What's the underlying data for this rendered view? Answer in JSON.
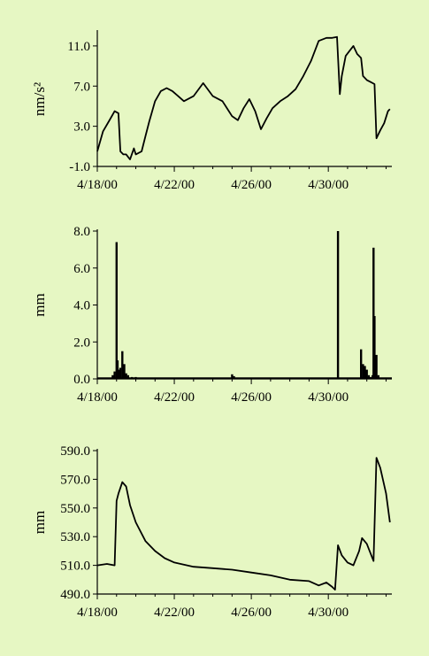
{
  "chart_data": [
    {
      "type": "line",
      "ylabel": "nm/s²",
      "ylim": [
        -1.0,
        12.4
      ],
      "yticks": [
        "-1.0",
        "3.0",
        "7.0",
        "11.0"
      ],
      "xlim": [
        0,
        15.3
      ],
      "xticks": [
        "4/18/00",
        "4/22/00",
        "4/26/00",
        "4/30/00"
      ],
      "series": [
        {
          "x": [
            0,
            0.3,
            0.6,
            0.9,
            1.1,
            1.2,
            1.35,
            1.5,
            1.7,
            1.9,
            2.0,
            2.3,
            2.5,
            2.7,
            3.0,
            3.3,
            3.6,
            3.9,
            4.2,
            4.5,
            5.0,
            5.5,
            6.0,
            6.5,
            7.0,
            7.3,
            7.6,
            7.9,
            8.2,
            8.5,
            8.8,
            9.1,
            9.5,
            9.9,
            10.3,
            10.7,
            11.1,
            11.5,
            11.9,
            12.2,
            12.45,
            12.6,
            12.7,
            12.9,
            13.1,
            13.3,
            13.5,
            13.7,
            13.8,
            14.0,
            14.2,
            14.4,
            14.5,
            14.7,
            14.9,
            15.1,
            15.2
          ],
          "values": [
            0.5,
            2.5,
            3.5,
            4.5,
            4.3,
            0.5,
            0.2,
            0.2,
            -0.3,
            0.8,
            0.2,
            0.5,
            2.0,
            3.5,
            5.5,
            6.5,
            6.8,
            6.5,
            6.0,
            5.5,
            6.0,
            7.3,
            6.0,
            5.5,
            4.0,
            3.6,
            4.8,
            5.7,
            4.5,
            2.7,
            3.8,
            4.8,
            5.5,
            6.0,
            6.7,
            8.0,
            9.5,
            11.5,
            11.8,
            11.8,
            11.9,
            6.2,
            8.0,
            10.0,
            10.5,
            11.0,
            10.2,
            9.8,
            8.0,
            7.6,
            7.4,
            7.2,
            1.8,
            2.6,
            3.3,
            4.5,
            4.7
          ]
        }
      ]
    },
    {
      "type": "bar",
      "ylabel": "mm",
      "ylim": [
        0,
        8.0
      ],
      "yticks": [
        "0.0",
        "2.0",
        "4.0",
        "6.0",
        "8.0"
      ],
      "xlim": [
        0,
        15.3
      ],
      "xticks": [
        "4/18/00",
        "4/22/00",
        "4/26/00",
        "4/30/00"
      ],
      "series": [
        {
          "x": [
            0.8,
            0.9,
            1.0,
            1.05,
            1.1,
            1.15,
            1.2,
            1.3,
            1.4,
            1.5,
            1.6,
            1.8,
            2.0,
            3.0,
            5.0,
            7.0,
            7.1,
            9.0,
            11.0,
            12.5,
            13.7,
            13.8,
            13.9,
            14.0,
            14.1,
            14.2,
            14.3,
            14.35,
            14.4,
            14.5,
            14.6
          ],
          "values": [
            0.2,
            0.4,
            7.4,
            1.0,
            0.5,
            0.2,
            0.6,
            1.5,
            0.8,
            0.3,
            0.2,
            0.1,
            0.1,
            0.05,
            0.05,
            0.25,
            0.15,
            0.05,
            0.05,
            8.0,
            1.6,
            0.8,
            0.7,
            0.5,
            0.2,
            0.1,
            0.2,
            7.1,
            3.4,
            1.3,
            0.2
          ]
        }
      ]
    },
    {
      "type": "line",
      "ylabel": "mm",
      "ylim": [
        490.0,
        590.0
      ],
      "yticks": [
        "490.0",
        "510.0",
        "530.0",
        "550.0",
        "570.0",
        "590.0"
      ],
      "xlim": [
        0,
        15.3
      ],
      "xticks": [
        "4/18/00",
        "4/22/00",
        "4/26/00",
        "4/30/00"
      ],
      "series": [
        {
          "x": [
            0,
            0.5,
            0.9,
            1.0,
            1.1,
            1.3,
            1.5,
            1.7,
            2.0,
            2.5,
            3.0,
            3.5,
            4.0,
            5.0,
            6.0,
            7.0,
            8.0,
            9.0,
            10.0,
            11.0,
            11.5,
            11.9,
            12.2,
            12.35,
            12.5,
            12.7,
            13.0,
            13.3,
            13.6,
            13.75,
            14.0,
            14.2,
            14.35,
            14.5,
            14.7,
            15.0,
            15.2
          ],
          "values": [
            510,
            511,
            510,
            555,
            560,
            568,
            565,
            552,
            540,
            527,
            520,
            515,
            512,
            509,
            508,
            507,
            505,
            503,
            500,
            499,
            496,
            498,
            495,
            493,
            524,
            517,
            512,
            510,
            520,
            529,
            525,
            518,
            513,
            585,
            578,
            560,
            540
          ]
        }
      ]
    }
  ]
}
